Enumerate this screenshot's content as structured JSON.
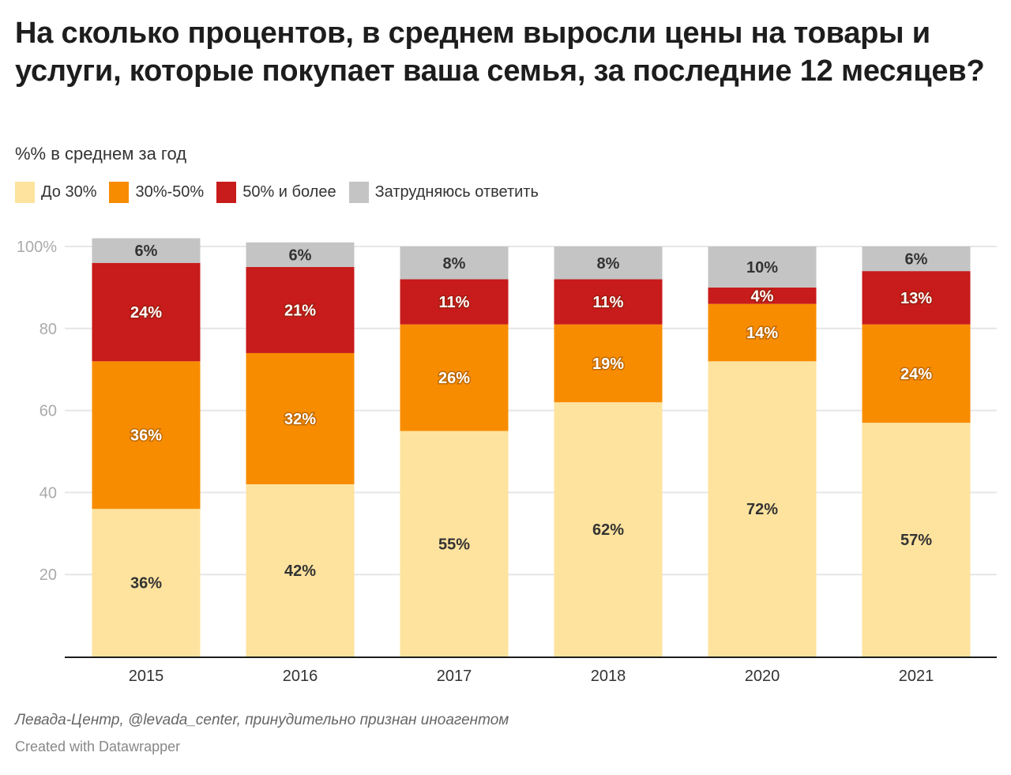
{
  "header": {
    "title": "На сколько процентов, в среднем выросли цены на товары и услуги, которые покупает ваша семья, за последние 12 месяцев?",
    "subtitle": "%% в среднем за год"
  },
  "footer": {
    "source": "Левада-Центр, @levada_center, принудительно признан иноагентом",
    "credit": "Created with Datawrapper"
  },
  "chart_data": {
    "type": "bar",
    "stacked": true,
    "title": "На сколько процентов, в среднем выросли цены на товары и услуги, которые покупает ваша семья, за последние 12 месяцев?",
    "subtitle": "%% в среднем за год",
    "xlabel": "",
    "ylabel": "",
    "ylim": [
      0,
      100
    ],
    "yticks": [
      20,
      40,
      60,
      80,
      100
    ],
    "ytick_labels": [
      "20",
      "40",
      "60",
      "80",
      "100%"
    ],
    "grid": true,
    "legend_position": "top-left",
    "categories": [
      "2015",
      "2016",
      "2017",
      "2018",
      "2020",
      "2021"
    ],
    "series": [
      {
        "name": "До 30%",
        "color": "#fee39e",
        "label_color": "#333333",
        "values": [
          36,
          42,
          55,
          62,
          72,
          57
        ]
      },
      {
        "name": "30%-50%",
        "color": "#f88c00",
        "label_color": "#ffffff",
        "values": [
          36,
          32,
          26,
          19,
          14,
          24
        ]
      },
      {
        "name": "50% и более",
        "color": "#c81b1b",
        "label_color": "#ffffff",
        "values": [
          24,
          21,
          11,
          11,
          4,
          13
        ]
      },
      {
        "name": "Затрудняюсь ответить",
        "color": "#c4c4c4",
        "label_color": "#333333",
        "values": [
          6,
          6,
          8,
          8,
          10,
          6
        ]
      }
    ],
    "value_suffix": "%"
  }
}
